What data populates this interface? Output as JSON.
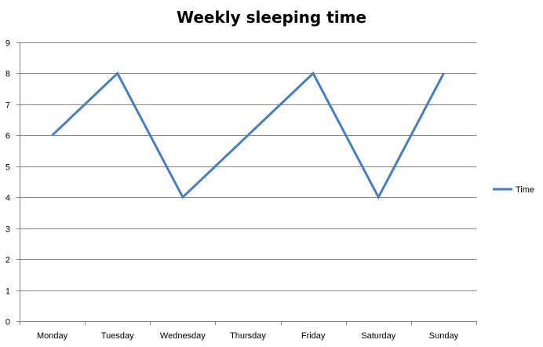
{
  "chart_data": {
    "type": "line",
    "title": "Weekly sleeping time",
    "xlabel": "",
    "ylabel": "",
    "categories": [
      "Monday",
      "Tuesday",
      "Wednesday",
      "Thursday",
      "Friday",
      "Saturday",
      "Sunday"
    ],
    "series": [
      {
        "name": "Time",
        "values": [
          6,
          8,
          4,
          6,
          8,
          4,
          8
        ],
        "color": "#4a7ebb"
      }
    ],
    "ylim": [
      0,
      9
    ],
    "y_ticks": [
      0,
      1,
      2,
      3,
      4,
      5,
      6,
      7,
      8,
      9
    ],
    "grid": "horizontal",
    "gridline_color": "#868686",
    "legend": "right"
  }
}
